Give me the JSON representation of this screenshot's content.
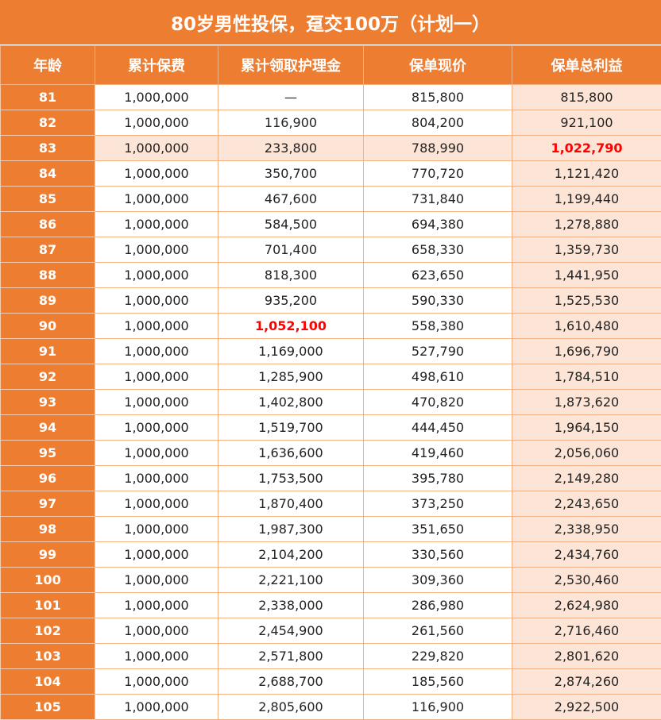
{
  "title": "80岁男性投保，趸交100万（计划一）",
  "headers": [
    "年龄",
    "累计保费",
    "累计领取护理金",
    "保单现价",
    "保单总利益"
  ],
  "highlight": {
    "row_highlight_age": "83",
    "red_cells": [
      {
        "age": "83",
        "col": "total"
      },
      {
        "age": "90",
        "col": "nursing"
      }
    ]
  },
  "rows": [
    {
      "age": "81",
      "premium": "1,000,000",
      "nursing": "—",
      "cash": "815,800",
      "total": "815,800"
    },
    {
      "age": "82",
      "premium": "1,000,000",
      "nursing": "116,900",
      "cash": "804,200",
      "total": "921,100"
    },
    {
      "age": "83",
      "premium": "1,000,000",
      "nursing": "233,800",
      "cash": "788,990",
      "total": "1,022,790"
    },
    {
      "age": "84",
      "premium": "1,000,000",
      "nursing": "350,700",
      "cash": "770,720",
      "total": "1,121,420"
    },
    {
      "age": "85",
      "premium": "1,000,000",
      "nursing": "467,600",
      "cash": "731,840",
      "total": "1,199,440"
    },
    {
      "age": "86",
      "premium": "1,000,000",
      "nursing": "584,500",
      "cash": "694,380",
      "total": "1,278,880"
    },
    {
      "age": "87",
      "premium": "1,000,000",
      "nursing": "701,400",
      "cash": "658,330",
      "total": "1,359,730"
    },
    {
      "age": "88",
      "premium": "1,000,000",
      "nursing": "818,300",
      "cash": "623,650",
      "total": "1,441,950"
    },
    {
      "age": "89",
      "premium": "1,000,000",
      "nursing": "935,200",
      "cash": "590,330",
      "total": "1,525,530"
    },
    {
      "age": "90",
      "premium": "1,000,000",
      "nursing": "1,052,100",
      "cash": "558,380",
      "total": "1,610,480"
    },
    {
      "age": "91",
      "premium": "1,000,000",
      "nursing": "1,169,000",
      "cash": "527,790",
      "total": "1,696,790"
    },
    {
      "age": "92",
      "premium": "1,000,000",
      "nursing": "1,285,900",
      "cash": "498,610",
      "total": "1,784,510"
    },
    {
      "age": "93",
      "premium": "1,000,000",
      "nursing": "1,402,800",
      "cash": "470,820",
      "total": "1,873,620"
    },
    {
      "age": "94",
      "premium": "1,000,000",
      "nursing": "1,519,700",
      "cash": "444,450",
      "total": "1,964,150"
    },
    {
      "age": "95",
      "premium": "1,000,000",
      "nursing": "1,636,600",
      "cash": "419,460",
      "total": "2,056,060"
    },
    {
      "age": "96",
      "premium": "1,000,000",
      "nursing": "1,753,500",
      "cash": "395,780",
      "total": "2,149,280"
    },
    {
      "age": "97",
      "premium": "1,000,000",
      "nursing": "1,870,400",
      "cash": "373,250",
      "total": "2,243,650"
    },
    {
      "age": "98",
      "premium": "1,000,000",
      "nursing": "1,987,300",
      "cash": "351,650",
      "total": "2,338,950"
    },
    {
      "age": "99",
      "premium": "1,000,000",
      "nursing": "2,104,200",
      "cash": "330,560",
      "total": "2,434,760"
    },
    {
      "age": "100",
      "premium": "1,000,000",
      "nursing": "2,221,100",
      "cash": "309,360",
      "total": "2,530,460"
    },
    {
      "age": "101",
      "premium": "1,000,000",
      "nursing": "2,338,000",
      "cash": "286,980",
      "total": "2,624,980"
    },
    {
      "age": "102",
      "premium": "1,000,000",
      "nursing": "2,454,900",
      "cash": "261,560",
      "total": "2,716,460"
    },
    {
      "age": "103",
      "premium": "1,000,000",
      "nursing": "2,571,800",
      "cash": "229,820",
      "total": "2,801,620"
    },
    {
      "age": "104",
      "premium": "1,000,000",
      "nursing": "2,688,700",
      "cash": "185,560",
      "total": "2,874,260"
    },
    {
      "age": "105",
      "premium": "1,000,000",
      "nursing": "2,805,600",
      "cash": "116,900",
      "total": "2,922,500"
    }
  ]
}
